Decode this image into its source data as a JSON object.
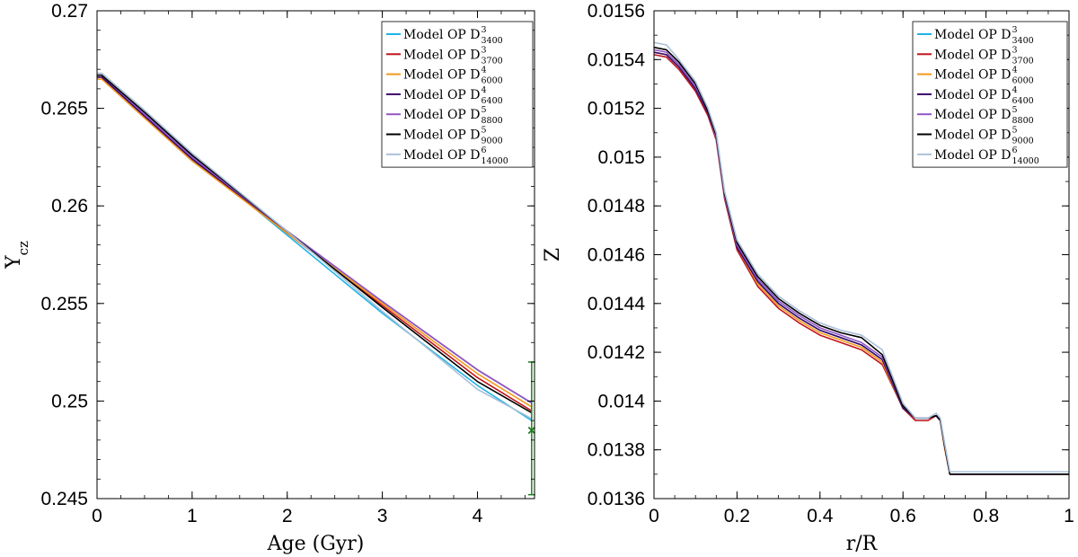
{
  "chart_data": [
    {
      "type": "line",
      "xlabel": "Age (Gyr)",
      "ylabel": "Y",
      "ylabel_sub": "cz",
      "xlim": [
        0,
        4.6
      ],
      "ylim": [
        0.245,
        0.27
      ],
      "xticks": [
        "0",
        "1",
        "2",
        "3",
        "4"
      ],
      "xtick_values": [
        0,
        1,
        2,
        3,
        4
      ],
      "yticks": [
        "0.245",
        "0.25",
        "0.255",
        "0.26",
        "0.265",
        "0.27"
      ],
      "ytick_values": [
        0.245,
        0.25,
        0.255,
        0.26,
        0.265,
        0.27
      ],
      "legend_position": "top-right",
      "series": [
        {
          "name": "Model OP D",
          "sup": "3",
          "sub": "3400",
          "color": "#1fb4e6",
          "x": [
            0,
            0.05,
            0.5,
            1,
            2,
            3,
            4,
            4.57
          ],
          "y": [
            0.2666,
            0.2666,
            0.2648,
            0.2625,
            0.2585,
            0.2545,
            0.2508,
            0.249
          ]
        },
        {
          "name": "Model OP D",
          "sup": "3",
          "sub": "3700",
          "color": "#c0141c",
          "x": [
            0,
            0.05,
            0.5,
            1,
            2,
            3,
            4,
            4.57
          ],
          "y": [
            0.2666,
            0.2666,
            0.2646,
            0.2624,
            0.2586,
            0.2549,
            0.2512,
            0.2495
          ]
        },
        {
          "name": "Model OP D",
          "sup": "4",
          "sub": "6000",
          "color": "#f39a1c",
          "x": [
            0,
            0.05,
            0.5,
            1,
            2,
            3,
            4,
            4.57
          ],
          "y": [
            0.2665,
            0.2665,
            0.2645,
            0.2623,
            0.2586,
            0.255,
            0.2514,
            0.2497
          ]
        },
        {
          "name": "Model OP D",
          "sup": "4",
          "sub": "6400",
          "color": "#3b0a6a",
          "x": [
            0,
            0.05,
            0.5,
            1,
            2,
            3,
            4,
            4.57
          ],
          "y": [
            0.2666,
            0.2666,
            0.2646,
            0.2624,
            0.2587,
            0.2551,
            0.2516,
            0.2499
          ]
        },
        {
          "name": "Model OP D",
          "sup": "5",
          "sub": "8800",
          "color": "#9256c6",
          "x": [
            0,
            0.05,
            0.5,
            1,
            2,
            3,
            4,
            4.57
          ],
          "y": [
            0.2667,
            0.2667,
            0.2647,
            0.2625,
            0.2587,
            0.2551,
            0.2516,
            0.2499
          ]
        },
        {
          "name": "Model OP D",
          "sup": "5",
          "sub": "9000",
          "color": "#000000",
          "x": [
            0,
            0.05,
            0.5,
            1,
            2,
            3,
            4,
            4.57
          ],
          "y": [
            0.2667,
            0.2667,
            0.2648,
            0.2626,
            0.2587,
            0.2548,
            0.251,
            0.2494
          ]
        },
        {
          "name": "Model OP D",
          "sup": "6",
          "sub": "14000",
          "color": "#aac0d8",
          "x": [
            0,
            0.05,
            0.5,
            1,
            2,
            3,
            4,
            4.57
          ],
          "y": [
            0.2668,
            0.2668,
            0.2649,
            0.2627,
            0.2587,
            0.2546,
            0.2506,
            0.2491
          ]
        }
      ],
      "errorbar": {
        "x": 4.57,
        "y": 0.2485,
        "ylow": 0.2452,
        "yhigh": 0.252,
        "color": "#1e7f1e"
      }
    },
    {
      "type": "line",
      "xlabel": "r/R",
      "ylabel": "Z",
      "xlim": [
        0,
        1
      ],
      "ylim": [
        0.0136,
        0.0156
      ],
      "xticks": [
        "0",
        "0.2",
        "0.4",
        "0.6",
        "0.8",
        "1"
      ],
      "xtick_values": [
        0,
        0.2,
        0.4,
        0.6,
        0.8,
        1
      ],
      "yticks": [
        "0.0136",
        "0.0138",
        "0.014",
        "0.0142",
        "0.0144",
        "0.0146",
        "0.0148",
        "0.015",
        "0.0152",
        "0.0154",
        "0.0156"
      ],
      "ytick_values": [
        0.0136,
        0.0138,
        0.014,
        0.0142,
        0.0144,
        0.0146,
        0.0148,
        0.015,
        0.0152,
        0.0154,
        0.0156
      ],
      "legend_position": "top-right",
      "series": [
        {
          "name": "Model OP D",
          "sup": "3",
          "sub": "3400",
          "color": "#1fb4e6",
          "x": [
            0,
            0.03,
            0.06,
            0.1,
            0.13,
            0.15,
            0.17,
            0.2,
            0.25,
            0.3,
            0.35,
            0.4,
            0.45,
            0.5,
            0.55,
            0.6,
            0.63,
            0.66,
            0.68,
            0.69,
            0.7,
            0.713,
            0.72,
            1
          ],
          "y": [
            0.01543,
            0.01542,
            0.01537,
            0.01528,
            0.01518,
            0.01508,
            0.01484,
            0.01464,
            0.01449,
            0.0144,
            0.01434,
            0.01429,
            0.01426,
            0.01423,
            0.01417,
            0.01397,
            0.01393,
            0.01393,
            0.01394,
            0.01392,
            0.01382,
            0.0137,
            0.0137,
            0.0137
          ]
        },
        {
          "name": "Model OP D",
          "sup": "3",
          "sub": "3700",
          "color": "#c0141c",
          "x": [
            0,
            0.03,
            0.06,
            0.1,
            0.13,
            0.15,
            0.17,
            0.2,
            0.25,
            0.3,
            0.35,
            0.4,
            0.45,
            0.5,
            0.55,
            0.6,
            0.63,
            0.66,
            0.68,
            0.69,
            0.7,
            0.713,
            0.72,
            1
          ],
          "y": [
            0.01542,
            0.01541,
            0.01536,
            0.01527,
            0.01517,
            0.01507,
            0.01483,
            0.01462,
            0.01447,
            0.01438,
            0.01432,
            0.01427,
            0.01424,
            0.01421,
            0.01415,
            0.01397,
            0.01392,
            0.01392,
            0.01394,
            0.01392,
            0.01381,
            0.0137,
            0.0137,
            0.0137
          ]
        },
        {
          "name": "Model OP D",
          "sup": "4",
          "sub": "6000",
          "color": "#f39a1c",
          "x": [
            0,
            0.03,
            0.06,
            0.1,
            0.13,
            0.15,
            0.17,
            0.2,
            0.25,
            0.3,
            0.35,
            0.4,
            0.45,
            0.5,
            0.55,
            0.6,
            0.63,
            0.66,
            0.68,
            0.69,
            0.7,
            0.713,
            0.72,
            1
          ],
          "y": [
            0.01543,
            0.01542,
            0.01537,
            0.01528,
            0.01518,
            0.01508,
            0.01484,
            0.01463,
            0.01448,
            0.01439,
            0.01433,
            0.01428,
            0.01425,
            0.01422,
            0.01416,
            0.01397,
            0.01393,
            0.01393,
            0.01394,
            0.01392,
            0.01381,
            0.0137,
            0.0137,
            0.0137
          ]
        },
        {
          "name": "Model OP D",
          "sup": "4",
          "sub": "6400",
          "color": "#3b0a6a",
          "x": [
            0,
            0.03,
            0.06,
            0.1,
            0.13,
            0.15,
            0.17,
            0.2,
            0.25,
            0.3,
            0.35,
            0.4,
            0.45,
            0.5,
            0.55,
            0.6,
            0.63,
            0.66,
            0.68,
            0.69,
            0.7,
            0.713,
            0.72,
            1
          ],
          "y": [
            0.01543,
            0.01542,
            0.01537,
            0.01528,
            0.01518,
            0.01508,
            0.01484,
            0.01463,
            0.01449,
            0.0144,
            0.01434,
            0.01429,
            0.01426,
            0.01423,
            0.01417,
            0.01397,
            0.01393,
            0.01393,
            0.01394,
            0.01392,
            0.01382,
            0.0137,
            0.0137,
            0.0137
          ]
        },
        {
          "name": "Model OP D",
          "sup": "5",
          "sub": "8800",
          "color": "#9256c6",
          "x": [
            0,
            0.03,
            0.06,
            0.1,
            0.13,
            0.15,
            0.17,
            0.2,
            0.25,
            0.3,
            0.35,
            0.4,
            0.45,
            0.5,
            0.55,
            0.6,
            0.63,
            0.66,
            0.68,
            0.69,
            0.7,
            0.713,
            0.72,
            1
          ],
          "y": [
            0.01544,
            0.01543,
            0.01538,
            0.01529,
            0.01519,
            0.01508,
            0.01484,
            0.01464,
            0.0145,
            0.01441,
            0.01435,
            0.0143,
            0.01427,
            0.01424,
            0.01418,
            0.01398,
            0.01393,
            0.01393,
            0.01394,
            0.01392,
            0.01382,
            0.0137,
            0.0137,
            0.0137
          ]
        },
        {
          "name": "Model OP D",
          "sup": "5",
          "sub": "9000",
          "color": "#000000",
          "x": [
            0,
            0.03,
            0.06,
            0.1,
            0.13,
            0.15,
            0.17,
            0.2,
            0.25,
            0.3,
            0.35,
            0.4,
            0.45,
            0.5,
            0.55,
            0.6,
            0.63,
            0.66,
            0.68,
            0.69,
            0.7,
            0.713,
            0.72,
            1
          ],
          "y": [
            0.01545,
            0.01544,
            0.01539,
            0.0153,
            0.01519,
            0.01509,
            0.01485,
            0.01465,
            0.01451,
            0.01442,
            0.01436,
            0.01431,
            0.01428,
            0.01426,
            0.01419,
            0.01398,
            0.01393,
            0.01393,
            0.01394,
            0.01392,
            0.01382,
            0.0137,
            0.0137,
            0.0137
          ]
        },
        {
          "name": "Model OP D",
          "sup": "6",
          "sub": "14000",
          "color": "#aac0d8",
          "x": [
            0,
            0.03,
            0.06,
            0.1,
            0.13,
            0.15,
            0.17,
            0.2,
            0.25,
            0.3,
            0.35,
            0.4,
            0.45,
            0.5,
            0.55,
            0.6,
            0.63,
            0.66,
            0.68,
            0.69,
            0.7,
            0.713,
            0.72,
            1
          ],
          "y": [
            0.01547,
            0.01546,
            0.0154,
            0.01531,
            0.0152,
            0.0151,
            0.01486,
            0.01466,
            0.01452,
            0.01443,
            0.01437,
            0.01432,
            0.01429,
            0.01427,
            0.01421,
            0.01399,
            0.01393,
            0.01393,
            0.01395,
            0.01393,
            0.01383,
            0.01371,
            0.01371,
            0.01371
          ]
        }
      ]
    }
  ]
}
